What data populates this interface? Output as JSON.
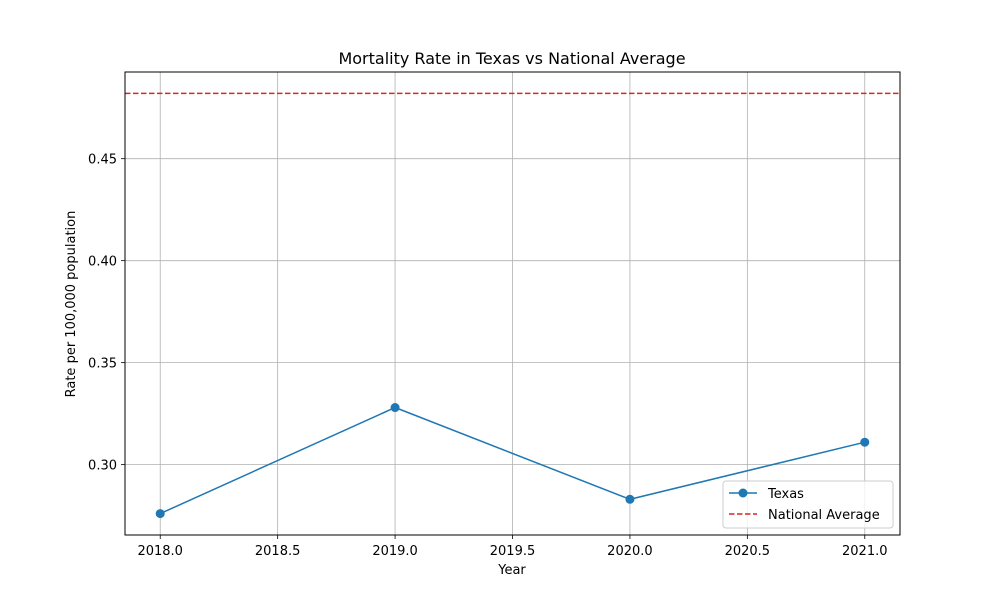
{
  "chart_data": {
    "type": "line",
    "title": "Mortality Rate in Texas vs National Average",
    "xlabel": "Year",
    "ylabel": "Rate per 100,000 population",
    "xlim": [
      2017.85,
      2021.15
    ],
    "ylim": [
      0.2655,
      0.4925
    ],
    "xticks": [
      2018.0,
      2018.5,
      2019.0,
      2019.5,
      2020.0,
      2020.5,
      2021.0
    ],
    "xtick_labels": [
      "2018.0",
      "2018.5",
      "2019.0",
      "2019.5",
      "2020.0",
      "2020.5",
      "2021.0"
    ],
    "yticks": [
      0.3,
      0.35,
      0.4,
      0.45
    ],
    "ytick_labels": [
      "0.30",
      "0.35",
      "0.40",
      "0.45"
    ],
    "grid": true,
    "legend_position": "bottom-right",
    "series": [
      {
        "name": "Texas",
        "style": "solid-line-with-circle-markers",
        "color": "#1f77b4",
        "x": [
          2018,
          2019,
          2020,
          2021
        ],
        "y": [
          0.276,
          0.328,
          0.283,
          0.311
        ]
      }
    ],
    "reference_lines": [
      {
        "name": "National Average",
        "style": "dashed",
        "color": "#d62728",
        "y": 0.482
      }
    ]
  }
}
